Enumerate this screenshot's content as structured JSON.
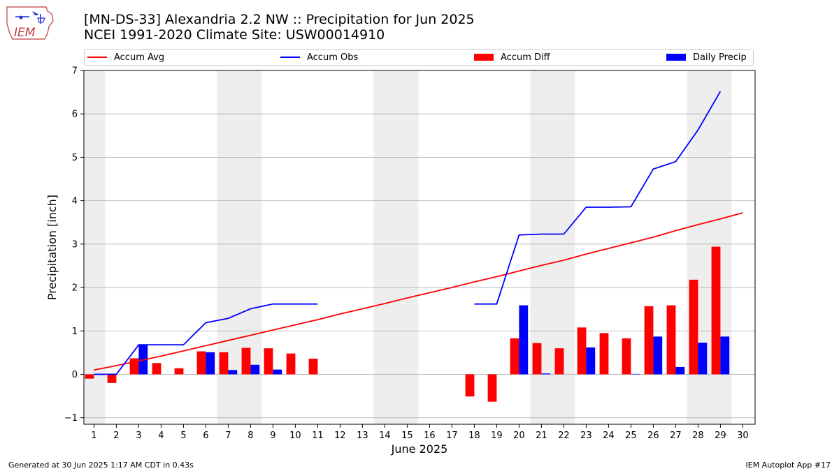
{
  "header": {
    "title_line1": "[MN-DS-33] Alexandria 2.2 NW :: Precipitation for Jun 2025",
    "title_line2": "NCEI 1991-2020 Climate Site: USW00014910",
    "logo_text": "IEM"
  },
  "legend": {
    "accum_avg": "Accum Avg",
    "accum_obs": "Accum Obs",
    "accum_diff": "Accum Diff",
    "daily_precip": "Daily Precip"
  },
  "footer": {
    "left": "Generated at 30 Jun 2025 1:17 AM CDT in 0.43s",
    "right": "IEM Autoplot App #17"
  },
  "colors": {
    "accum_avg": "#ff0000",
    "accum_obs": "#0000ff",
    "accum_diff": "#ff0000",
    "daily_precip": "#0000ff",
    "weekend_shade": "#eeeeee",
    "grid": "#b0b0b0"
  },
  "chart_data": {
    "type": "bar",
    "xlabel": "June 2025",
    "ylabel": "Precipitation [inch]",
    "ylim": [
      -1.15,
      7.0
    ],
    "yticks": [
      -1,
      0,
      1,
      2,
      3,
      4,
      5,
      6,
      7
    ],
    "xlim": [
      0.55,
      30.55
    ],
    "x": [
      1,
      2,
      3,
      4,
      5,
      6,
      7,
      8,
      9,
      10,
      11,
      12,
      13,
      14,
      15,
      16,
      17,
      18,
      19,
      20,
      21,
      22,
      23,
      24,
      25,
      26,
      27,
      28,
      29,
      30
    ],
    "grid": "horizontal",
    "legend_position": "top",
    "shaded_weekends": [
      [
        1,
        1
      ],
      [
        7,
        8
      ],
      [
        14,
        15
      ],
      [
        21,
        22
      ],
      [
        28,
        29
      ]
    ],
    "series": [
      {
        "name": "Accum Avg",
        "type": "line",
        "values": [
          0.1,
          0.2,
          0.31,
          0.42,
          0.54,
          0.66,
          0.78,
          0.9,
          1.02,
          1.14,
          1.26,
          1.39,
          1.51,
          1.63,
          1.76,
          1.88,
          2.0,
          2.13,
          2.25,
          2.38,
          2.51,
          2.63,
          2.77,
          2.9,
          3.03,
          3.16,
          3.31,
          3.45,
          3.58,
          3.72
        ]
      },
      {
        "name": "Accum Obs",
        "type": "line",
        "values": [
          0.0,
          0.0,
          0.68,
          0.68,
          0.68,
          1.19,
          1.29,
          1.51,
          1.62,
          1.62,
          1.62,
          null,
          null,
          null,
          null,
          null,
          null,
          1.62,
          1.62,
          3.21,
          3.23,
          3.23,
          3.85,
          3.85,
          3.86,
          4.73,
          4.9,
          5.63,
          6.52,
          null
        ]
      },
      {
        "name": "Accum Diff",
        "type": "bar",
        "values": [
          -0.1,
          -0.2,
          0.37,
          0.26,
          0.14,
          0.53,
          0.51,
          0.61,
          0.6,
          0.48,
          0.36,
          null,
          null,
          null,
          null,
          null,
          null,
          -0.51,
          -0.63,
          0.83,
          0.72,
          0.6,
          1.08,
          0.95,
          0.83,
          1.57,
          1.59,
          2.18,
          2.94,
          null
        ]
      },
      {
        "name": "Daily Precip",
        "type": "bar",
        "values": [
          0.0,
          0.0,
          0.68,
          0.0,
          0.0,
          0.51,
          0.1,
          0.22,
          0.11,
          0.0,
          0.0,
          null,
          null,
          null,
          null,
          null,
          null,
          0.0,
          0.0,
          1.59,
          0.02,
          0.0,
          0.62,
          0.0,
          0.01,
          0.87,
          0.17,
          0.73,
          0.87,
          null
        ]
      }
    ]
  }
}
